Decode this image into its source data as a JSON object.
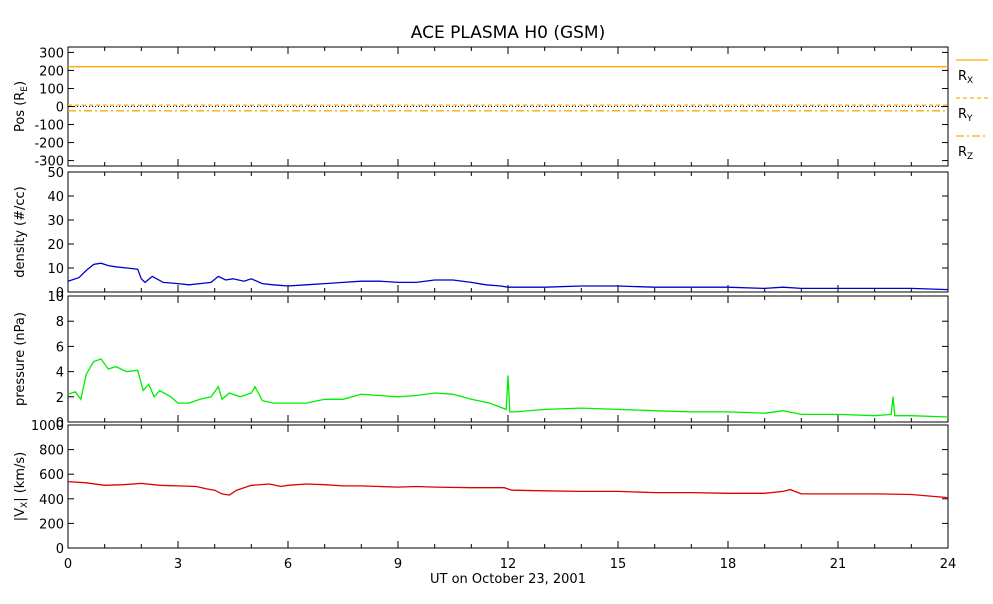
{
  "title": "ACE PLASMA H0 (GSM)",
  "xlabel": "UT on October 23, 2001",
  "x_ticks": [
    "0",
    "3",
    "6",
    "9",
    "12",
    "15",
    "18",
    "21",
    "24"
  ],
  "chart_data": [
    {
      "type": "line",
      "panel": "position",
      "ylabel": "Pos (R",
      "ylabel_sub": "E",
      "ylabel_close": ")",
      "ylim": [
        -330,
        330
      ],
      "y_ticks": [
        300,
        200,
        100,
        0,
        -100,
        -200,
        -300
      ],
      "y_tick_labels": [
        "300",
        "200",
        "100",
        "0",
        "-100",
        "-200",
        "-300"
      ],
      "zero_line": true,
      "legend_placement": "right",
      "series": [
        {
          "name": "R",
          "sub": "X",
          "style": "solid",
          "color": "#ffaa00",
          "x": [
            0,
            24
          ],
          "y": [
            221,
            221
          ]
        },
        {
          "name": "R",
          "sub": "Y",
          "style": "dashed",
          "color": "#ffaa00",
          "x": [
            0,
            24
          ],
          "y": [
            8,
            8
          ]
        },
        {
          "name": "R",
          "sub": "Z",
          "style": "dashdot",
          "color": "#ffaa00",
          "x": [
            0,
            24
          ],
          "y": [
            -24,
            -24
          ]
        }
      ]
    },
    {
      "type": "line",
      "panel": "density",
      "ylabel": "density (#/cc)",
      "ylim": [
        0,
        50
      ],
      "y_ticks": [
        0,
        10,
        20,
        30,
        40,
        50
      ],
      "y_tick_labels": [
        "0",
        "10",
        "20",
        "30",
        "40",
        "50"
      ],
      "series": [
        {
          "color": "#0000cc",
          "x": [
            0,
            0.3,
            0.5,
            0.7,
            0.9,
            1.1,
            1.3,
            1.6,
            1.9,
            2.0,
            2.1,
            2.3,
            2.6,
            3.0,
            3.3,
            3.6,
            3.9,
            4.1,
            4.3,
            4.5,
            4.8,
            5.0,
            5.3,
            5.6,
            6.0,
            6.5,
            7.0,
            7.5,
            8.0,
            8.5,
            9.0,
            9.5,
            10.0,
            10.5,
            11.0,
            11.4,
            11.8,
            12.0,
            12.2,
            13.0,
            14.0,
            15.0,
            16.0,
            17.0,
            18.0,
            19.0,
            19.5,
            20.0,
            21.0,
            22.0,
            23.0,
            24.0
          ],
          "y": [
            4.5,
            6.0,
            9.0,
            11.5,
            12.0,
            11.0,
            10.5,
            10.0,
            9.5,
            5.5,
            4.0,
            6.5,
            4.0,
            3.5,
            3.0,
            3.5,
            4.0,
            6.5,
            5.0,
            5.5,
            4.5,
            5.5,
            3.5,
            3.0,
            2.5,
            3.0,
            3.5,
            4.0,
            4.5,
            4.5,
            4.0,
            4.0,
            5.0,
            5.0,
            4.0,
            3.0,
            2.5,
            2.0,
            2.0,
            2.0,
            2.5,
            2.5,
            2.0,
            2.0,
            2.0,
            1.5,
            2.0,
            1.5,
            1.5,
            1.5,
            1.5,
            1.0
          ]
        }
      ]
    },
    {
      "type": "line",
      "panel": "pressure",
      "ylabel": "pressure (nPa)",
      "ylim": [
        0,
        10
      ],
      "y_ticks": [
        0,
        2,
        4,
        6,
        8,
        10
      ],
      "y_tick_labels": [
        "0",
        "2",
        "4",
        "6",
        "8",
        "10"
      ],
      "series": [
        {
          "color": "#00ee00",
          "x": [
            0,
            0.2,
            0.35,
            0.5,
            0.7,
            0.9,
            1.1,
            1.3,
            1.6,
            1.9,
            2.05,
            2.2,
            2.35,
            2.5,
            2.8,
            3.0,
            3.3,
            3.6,
            3.9,
            4.1,
            4.2,
            4.4,
            4.7,
            5.0,
            5.1,
            5.3,
            5.6,
            6.0,
            6.5,
            7.0,
            7.5,
            8.0,
            8.5,
            9.0,
            9.5,
            10.0,
            10.5,
            11.0,
            11.5,
            11.95,
            12.0,
            12.05,
            12.2,
            13.0,
            14.0,
            15.0,
            16.0,
            17.0,
            18.0,
            19.0,
            19.5,
            20.0,
            21.0,
            22.0,
            22.45,
            22.5,
            22.55,
            23.0,
            24.0
          ],
          "y": [
            2.2,
            2.4,
            1.8,
            3.8,
            4.8,
            5.0,
            4.2,
            4.4,
            4.0,
            4.1,
            2.5,
            3.0,
            2.0,
            2.5,
            2.0,
            1.5,
            1.5,
            1.8,
            2.0,
            2.8,
            1.8,
            2.3,
            2.0,
            2.3,
            2.8,
            1.7,
            1.5,
            1.5,
            1.5,
            1.8,
            1.8,
            2.2,
            2.1,
            2.0,
            2.1,
            2.3,
            2.2,
            1.8,
            1.5,
            1.0,
            3.7,
            0.8,
            0.8,
            1.0,
            1.1,
            1.0,
            0.9,
            0.8,
            0.8,
            0.7,
            0.9,
            0.6,
            0.6,
            0.5,
            0.6,
            2.0,
            0.5,
            0.5,
            0.4
          ]
        }
      ]
    },
    {
      "type": "line",
      "panel": "velocity",
      "ylabel": "|V",
      "ylabel_sub": "X",
      "ylabel_close": "| (km/s)",
      "ylim": [
        0,
        1000
      ],
      "y_ticks": [
        0,
        200,
        400,
        600,
        800,
        1000
      ],
      "y_tick_labels": [
        "0",
        "200",
        "400",
        "600",
        "800",
        "1000"
      ],
      "series": [
        {
          "color": "#dd0000",
          "x": [
            0,
            0.5,
            1.0,
            1.5,
            2.0,
            2.5,
            3.0,
            3.5,
            3.8,
            4.0,
            4.2,
            4.4,
            4.6,
            5.0,
            5.5,
            5.8,
            6.0,
            6.5,
            7.0,
            7.5,
            8.0,
            8.5,
            9.0,
            9.5,
            10.0,
            11.0,
            11.9,
            12.1,
            13.0,
            14.0,
            15.0,
            16.0,
            17.0,
            18.0,
            19.0,
            19.5,
            19.7,
            20.0,
            21.0,
            22.0,
            23.0,
            24.0
          ],
          "y": [
            540,
            530,
            510,
            515,
            525,
            510,
            505,
            500,
            480,
            470,
            440,
            430,
            470,
            510,
            520,
            500,
            510,
            520,
            515,
            505,
            505,
            500,
            495,
            500,
            495,
            490,
            490,
            470,
            465,
            460,
            460,
            450,
            450,
            445,
            445,
            460,
            475,
            440,
            440,
            440,
            435,
            410
          ]
        }
      ]
    }
  ]
}
